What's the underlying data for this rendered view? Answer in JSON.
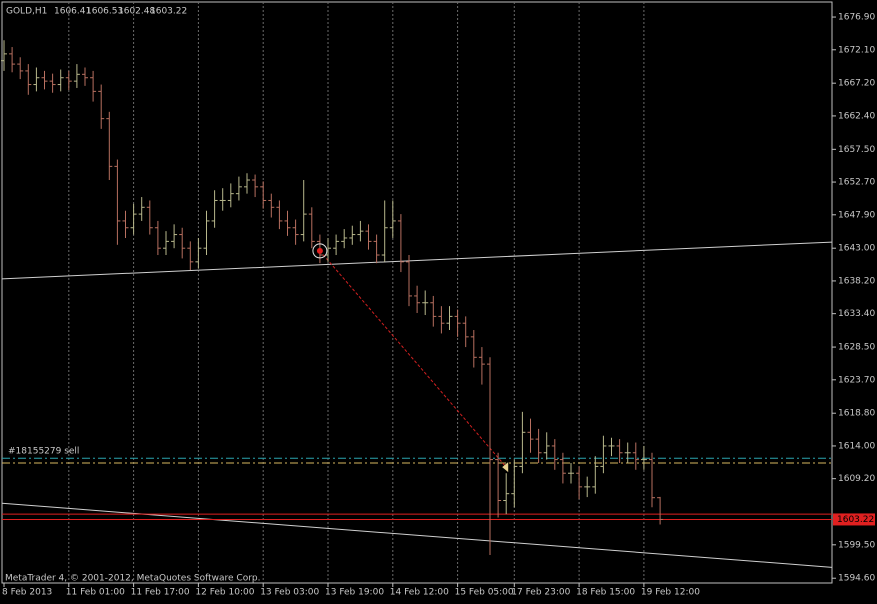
{
  "chart_data": {
    "type": "ohlc",
    "symbol": "GOLD,H1",
    "footer": "MetaTrader 4, © 2001-2012, MetaQuotes Software Corp.",
    "categories": [
      "8 Feb 2013",
      null,
      null,
      null,
      null,
      null,
      null,
      null,
      "11 Feb 01:00",
      null,
      null,
      null,
      null,
      null,
      null,
      null,
      "11 Feb 17:00",
      null,
      null,
      null,
      null,
      null,
      null,
      null,
      "12 Feb 10:00",
      null,
      null,
      null,
      null,
      null,
      null,
      null,
      "13 Feb 03:00",
      null,
      null,
      null,
      null,
      null,
      null,
      null,
      "13 Feb 19:00",
      null,
      null,
      null,
      null,
      null,
      null,
      null,
      "14 Feb 12:00",
      null,
      null,
      null,
      null,
      null,
      null,
      null,
      "15 Feb 05:00",
      null,
      null,
      null,
      null,
      null,
      null,
      "17 Feb 23:00",
      null,
      null,
      null,
      null,
      null,
      null,
      null,
      "18 Feb 15:00",
      null,
      null,
      null,
      null,
      null,
      null,
      null,
      "19 Feb 12:00",
      null,
      null
    ],
    "open": [
      1670.5,
      1671.5,
      1670,
      1669,
      1667,
      1668,
      1667.5,
      1667,
      1668,
      1667.5,
      1668.5,
      1668,
      1666,
      1662,
      1655,
      1647,
      1646,
      1648,
      1649,
      1646,
      1643,
      1644,
      1645,
      1643,
      1641,
      1643,
      1647,
      1650,
      1650,
      1651,
      1652,
      1653,
      1652,
      1650,
      1649,
      1647,
      1646,
      1645,
      1648,
      1644,
      1642,
      1643,
      1644,
      1644.5,
      1645,
      1645.5,
      1644,
      1642,
      1646,
      1647,
      1641,
      1636,
      1635,
      1635,
      1633,
      1632,
      1633,
      1632,
      1630,
      1627,
      1626,
      1612,
      1606,
      1607,
      1611,
      1616,
      1615,
      1613,
      1614,
      1612,
      1610,
      1610,
      1608,
      1608,
      1611,
      1614,
      1614,
      1613,
      1613,
      1612,
      1612,
      1606.41
    ],
    "high": [
      1673.5,
      1672.5,
      1671,
      1670,
      1669.5,
      1669,
      1668.6,
      1669.2,
      1669,
      1670,
      1669.5,
      1669,
      1667,
      1663,
      1656,
      1648.5,
      1649.5,
      1650.5,
      1650,
      1647,
      1645.5,
      1646.5,
      1646,
      1644,
      1644.5,
      1648.5,
      1651.5,
      1651.8,
      1652.5,
      1653.5,
      1654,
      1653.8,
      1652.8,
      1651,
      1650,
      1648.5,
      1647.2,
      1653,
      1649,
      1645,
      1644.5,
      1645,
      1645.8,
      1646.3,
      1647,
      1646.5,
      1645,
      1650,
      1650,
      1648,
      1642,
      1637.5,
      1636.8,
      1636,
      1634.5,
      1634.5,
      1634,
      1633,
      1631,
      1628.5,
      1627,
      1613,
      1610,
      1612,
      1619,
      1618,
      1616.5,
      1616,
      1615,
      1613,
      1611.5,
      1611,
      1609.5,
      1612.5,
      1615.5,
      1615.2,
      1615,
      1614.5,
      1614.5,
      1614,
      1613,
      1606.53
    ],
    "low": [
      1669,
      1668.8,
      1667.8,
      1665.5,
      1666,
      1666.3,
      1665.8,
      1666,
      1666.2,
      1666.5,
      1666.8,
      1664.5,
      1660.5,
      1653,
      1643.5,
      1644.5,
      1645,
      1647,
      1645,
      1642,
      1642,
      1643,
      1641.5,
      1639.8,
      1640,
      1642,
      1646,
      1648.5,
      1649,
      1650,
      1651,
      1650.5,
      1648.8,
      1647.5,
      1645.8,
      1644.8,
      1643.5,
      1644,
      1643,
      1640.8,
      1641,
      1642,
      1643,
      1643.5,
      1644,
      1642.8,
      1640.8,
      1641,
      1644.5,
      1639.5,
      1634.5,
      1633.5,
      1633.2,
      1631.5,
      1630.5,
      1631,
      1630,
      1628.5,
      1625.5,
      1623,
      1598,
      1603.5,
      1604,
      1605,
      1610,
      1613,
      1611.5,
      1612,
      1610.5,
      1608.5,
      1608.5,
      1606.2,
      1606.5,
      1607,
      1610,
      1612.5,
      1611.5,
      1611.5,
      1610.5,
      1610.5,
      1605,
      1602.48
    ],
    "close": [
      1671.5,
      1670,
      1669,
      1667,
      1668,
      1667.5,
      1667,
      1668,
      1667.5,
      1668.5,
      1668,
      1666,
      1662,
      1655,
      1647,
      1646,
      1648,
      1649,
      1646,
      1643,
      1644,
      1645,
      1643,
      1641,
      1643,
      1647,
      1650,
      1650,
      1651,
      1652,
      1653,
      1652,
      1650,
      1649,
      1647,
      1646,
      1645,
      1648,
      1644,
      1642,
      1643,
      1644,
      1644.5,
      1645,
      1645.5,
      1644,
      1642,
      1646,
      1647,
      1641,
      1636,
      1635,
      1635,
      1633,
      1632,
      1633,
      1632,
      1630,
      1627,
      1626,
      1612,
      1606,
      1607,
      1611,
      1616,
      1615,
      1613,
      1614,
      1612,
      1610,
      1610,
      1608,
      1608,
      1611,
      1614,
      1614,
      1613,
      1613,
      1612,
      1612,
      1606.41,
      1603.22
    ],
    "up_color": "#b8b88c",
    "down_color": "#b87060",
    "ylim": [
      1593.9,
      1679.4
    ],
    "yticks": [
      {
        "value": 1676.9,
        "label": "1676.90"
      },
      {
        "value": 1672.1,
        "label": "1672.10"
      },
      {
        "value": 1667.2,
        "label": "1667.20"
      },
      {
        "value": 1662.4,
        "label": "1662.40"
      },
      {
        "value": 1657.5,
        "label": "1657.50"
      },
      {
        "value": 1652.7,
        "label": "1652.70"
      },
      {
        "value": 1647.9,
        "label": "1647.90"
      },
      {
        "value": 1643,
        "label": "1643.00"
      },
      {
        "value": 1638.2,
        "label": "1638.20"
      },
      {
        "value": 1633.4,
        "label": "1633.40"
      },
      {
        "value": 1628.5,
        "label": "1628.50"
      },
      {
        "value": 1623.7,
        "label": "1623.70"
      },
      {
        "value": 1618.8,
        "label": "1618.80"
      },
      {
        "value": 1614,
        "label": "1614.00"
      },
      {
        "value": 1609.2,
        "label": "1609.20"
      },
      {
        "value": 1599.5,
        "label": "1599.50"
      },
      {
        "value": 1594.6,
        "label": "1594.60"
      }
    ],
    "grid": true,
    "levels": [
      {
        "value": 1612.2,
        "color": "#2aa6b0",
        "style": "dashdot"
      },
      {
        "value": 1611.5,
        "color": "#d8b860",
        "style": "dashdot"
      },
      {
        "value": 1604,
        "color": "#e02020",
        "style": "solid"
      },
      {
        "value": 1603.22,
        "color": "#e02020",
        "style": "solid"
      }
    ],
    "order": {
      "label": "#18155279 sell",
      "open": [
        39,
        1642.6
      ],
      "close": [
        62,
        1610.9
      ]
    },
    "trendlines": [
      {
        "start": 1638.5,
        "end": 1643.9,
        "color": "#d0d0d0"
      },
      {
        "start": 1605.6,
        "end": 1596.2,
        "color": "#d0d0d0"
      }
    ]
  }
}
